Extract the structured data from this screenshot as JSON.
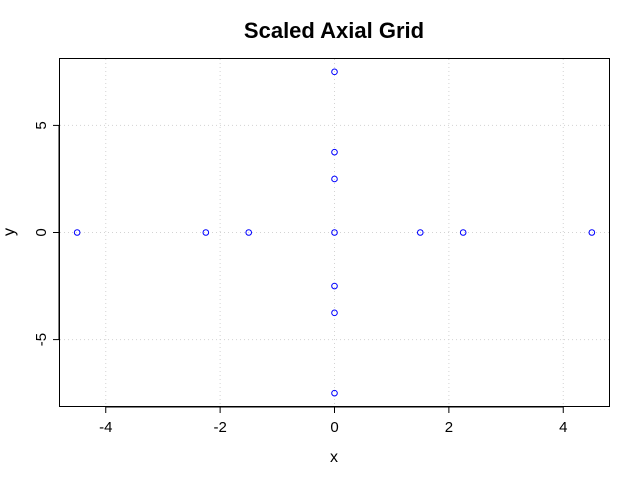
{
  "chart_data": {
    "type": "scatter",
    "title": "Scaled Axial Grid",
    "xlabel": "x",
    "ylabel": "y",
    "xlim": [
      -4.8,
      4.8
    ],
    "ylim": [
      -8.1,
      8.1
    ],
    "xticks": [
      -4,
      -2,
      0,
      2,
      4
    ],
    "xtick_labels": [
      "-4",
      "-2",
      "0",
      "2",
      "4"
    ],
    "yticks": [
      -5,
      0,
      5
    ],
    "ytick_labels": [
      "-5",
      "0",
      "5"
    ],
    "grid": true,
    "point_color": "#0000ff",
    "grid_color": "#d3d3d3",
    "points": [
      {
        "x": 0,
        "y": 7.5
      },
      {
        "x": 0,
        "y": 3.75
      },
      {
        "x": 0,
        "y": 2.5
      },
      {
        "x": -4.5,
        "y": 0
      },
      {
        "x": -2.25,
        "y": 0
      },
      {
        "x": -1.5,
        "y": 0
      },
      {
        "x": 0,
        "y": 0
      },
      {
        "x": 1.5,
        "y": 0
      },
      {
        "x": 2.25,
        "y": 0
      },
      {
        "x": 4.5,
        "y": 0
      },
      {
        "x": 0,
        "y": -2.5
      },
      {
        "x": 0,
        "y": -3.75
      },
      {
        "x": 0,
        "y": -7.5
      }
    ]
  }
}
